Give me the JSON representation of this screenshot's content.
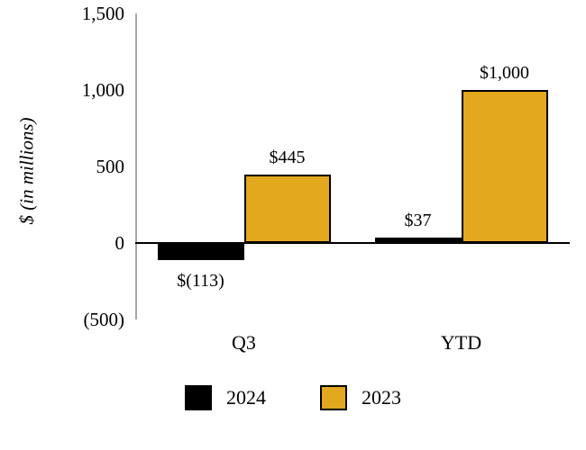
{
  "chart_data": {
    "type": "bar",
    "categories": [
      "Q3",
      "YTD"
    ],
    "series": [
      {
        "name": "2024",
        "color": "#000000",
        "border": false,
        "values": [
          -113,
          37
        ],
        "value_labels": [
          "$(113)",
          "$37"
        ]
      },
      {
        "name": "2023",
        "color": "#e3a81d",
        "border": true,
        "values": [
          445,
          1000
        ],
        "value_labels": [
          "$445",
          "$1,000"
        ]
      }
    ],
    "title": "",
    "xlabel": "",
    "ylabel": "$ (in millions)",
    "ylim": [
      -500,
      1500
    ],
    "yticks": [
      {
        "value": 1500,
        "label": "1,500"
      },
      {
        "value": 1000,
        "label": "1,000"
      },
      {
        "value": 500,
        "label": "500"
      },
      {
        "value": 0,
        "label": "0"
      },
      {
        "value": -500,
        "label": "(500)"
      }
    ],
    "grid": false,
    "legend_position": "bottom",
    "colors": {
      "axis_line": "#a6a6a6",
      "zero_line": "#000000",
      "series_2024": "#000000",
      "series_2023": "#e3a81d"
    }
  }
}
